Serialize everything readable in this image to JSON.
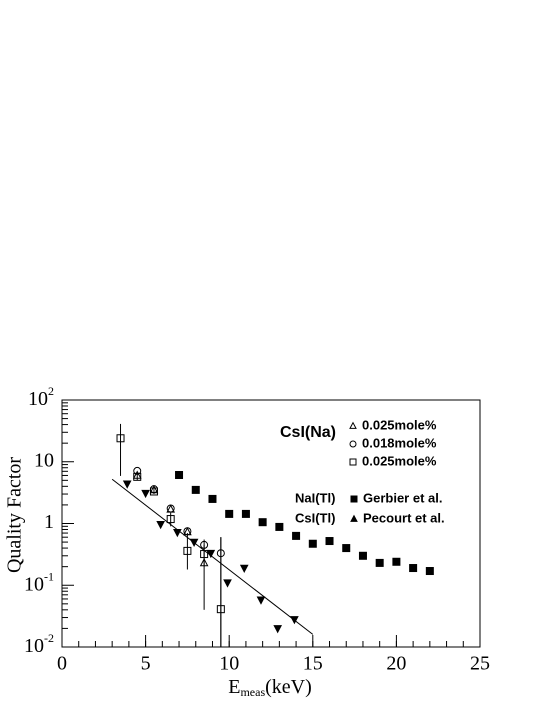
{
  "chart_data": {
    "type": "scatter",
    "xlabel": {
      "main": "E",
      "subscript": "meas",
      "suffix": "(keV)"
    },
    "ylabel": "Quality Factor",
    "xlim": [
      0,
      25
    ],
    "xticks": [
      0,
      5,
      10,
      15,
      20,
      25
    ],
    "ylim": [
      0.01,
      100
    ],
    "log_y": true,
    "yticks": [
      {
        "value": 0.01,
        "label": "10",
        "exponent": "-2"
      },
      {
        "value": 0.1,
        "label": "10",
        "exponent": "-1"
      },
      1,
      10,
      {
        "value": 100,
        "label": "10",
        "exponent": "2"
      }
    ],
    "legend_labels": [
      "CsI(Na)",
      "NaI(Tl)",
      "CsI(Tl)"
    ],
    "series": [
      {
        "name": "0.025mole%",
        "marker": "open-triangle",
        "color": "#000000",
        "x": [
          4.5,
          5.5,
          6.5,
          7.5,
          8.5
        ],
        "values": [
          6.0,
          3.5,
          1.7,
          0.73,
          0.23
        ],
        "err_low": [
          null,
          null,
          null,
          null,
          0.04
        ],
        "err_high": [
          null,
          null,
          null,
          null,
          0.45
        ]
      },
      {
        "name": "0.018mole%",
        "marker": "open-circle",
        "color": "#000000",
        "x": [
          4.5,
          5.5,
          6.5,
          7.5,
          8.5,
          9.5
        ],
        "values": [
          7.1,
          3.6,
          1.75,
          0.75,
          0.45,
          0.33
        ],
        "err_low": [
          null,
          null,
          null,
          null,
          null,
          0.01
        ],
        "err_high": [
          null,
          null,
          null,
          null,
          null,
          0.6
        ]
      },
      {
        "name": "0.025mole%",
        "marker": "open-square",
        "color": "#000000",
        "x": [
          3.5,
          4.5,
          5.5,
          6.5,
          7.5,
          8.5,
          9.5
        ],
        "values": [
          24,
          5.7,
          3.3,
          1.18,
          0.36,
          0.32,
          0.041
        ],
        "err_low": [
          5.9,
          5.0,
          3.0,
          0.9,
          0.18,
          0.2,
          0.01
        ],
        "err_high": [
          41,
          6.5,
          3.8,
          1.5,
          0.7,
          0.55,
          0.6
        ]
      },
      {
        "name": "Gerbier et al.",
        "marker": "filled-square",
        "color": "#000000",
        "x": [
          7,
          8,
          9,
          10,
          11,
          12,
          13,
          14,
          15,
          16,
          17,
          18,
          19,
          20,
          21,
          22
        ],
        "values": [
          6.1,
          3.5,
          2.5,
          1.43,
          1.43,
          1.05,
          0.88,
          0.63,
          0.47,
          0.52,
          0.4,
          0.3,
          0.23,
          0.24,
          0.19,
          0.17
        ]
      },
      {
        "name": "Pecourt et al.",
        "marker": "filled-triangle-down",
        "color": "#000000",
        "x": [
          3.9,
          5.0,
          5.9,
          6.9,
          7.9,
          8.9,
          9.9,
          10.9,
          11.9,
          12.9,
          13.9
        ],
        "values": [
          4.4,
          3.1,
          0.97,
          0.72,
          0.5,
          0.33,
          0.11,
          0.19,
          0.058,
          0.02,
          0.028
        ]
      }
    ],
    "fit": {
      "x": [
        3,
        15
      ],
      "values": [
        5.2,
        0.016
      ]
    }
  }
}
